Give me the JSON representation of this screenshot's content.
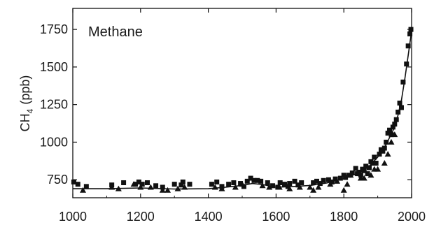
{
  "chart_data": {
    "type": "scatter",
    "title": "Methane",
    "ylabel": {
      "text": "CH",
      "subscript": "4",
      "unit": "(ppb)"
    },
    "xlabel": "",
    "xlim": [
      1000,
      2000
    ],
    "ylim": [
      630,
      1890
    ],
    "x_ticks": [
      1000,
      1200,
      1400,
      1600,
      1800,
      2000
    ],
    "x_tick_labels": [
      "1000",
      "1200",
      "1400",
      "1600",
      "1800",
      "2000"
    ],
    "y_ticks": [
      750,
      1000,
      1250,
      1500,
      1750
    ],
    "y_tick_labels": [
      "750",
      "1000",
      "1250",
      "1500",
      "1750"
    ],
    "grid": false,
    "marker_color": "#111111",
    "series": [
      {
        "marker": "square",
        "points": [
          [
            1003,
            735
          ],
          [
            1015,
            720
          ],
          [
            1040,
            705
          ],
          [
            1115,
            715
          ],
          [
            1150,
            730
          ],
          [
            1185,
            720
          ],
          [
            1195,
            735
          ],
          [
            1205,
            720
          ],
          [
            1220,
            730
          ],
          [
            1245,
            710
          ],
          [
            1265,
            700
          ],
          [
            1300,
            720
          ],
          [
            1320,
            715
          ],
          [
            1325,
            735
          ],
          [
            1345,
            720
          ],
          [
            1410,
            720
          ],
          [
            1425,
            735
          ],
          [
            1440,
            705
          ],
          [
            1460,
            720
          ],
          [
            1475,
            730
          ],
          [
            1495,
            725
          ],
          [
            1505,
            705
          ],
          [
            1515,
            740
          ],
          [
            1525,
            760
          ],
          [
            1535,
            745
          ],
          [
            1545,
            745
          ],
          [
            1555,
            740
          ],
          [
            1575,
            730
          ],
          [
            1590,
            710
          ],
          [
            1605,
            700
          ],
          [
            1612,
            730
          ],
          [
            1625,
            720
          ],
          [
            1635,
            705
          ],
          [
            1640,
            725
          ],
          [
            1655,
            740
          ],
          [
            1665,
            715
          ],
          [
            1675,
            730
          ],
          [
            1710,
            730
          ],
          [
            1720,
            740
          ],
          [
            1730,
            725
          ],
          [
            1740,
            745
          ],
          [
            1755,
            750
          ],
          [
            1765,
            735
          ],
          [
            1775,
            755
          ],
          [
            1790,
            760
          ],
          [
            1800,
            780
          ],
          [
            1805,
            765
          ],
          [
            1815,
            780
          ],
          [
            1825,
            795
          ],
          [
            1835,
            825
          ],
          [
            1840,
            790
          ],
          [
            1845,
            800
          ],
          [
            1850,
            780
          ],
          [
            1855,
            820
          ],
          [
            1860,
            810
          ],
          [
            1865,
            840
          ],
          [
            1870,
            790
          ],
          [
            1875,
            830
          ],
          [
            1880,
            870
          ],
          [
            1885,
            860
          ],
          [
            1890,
            900
          ],
          [
            1895,
            860
          ],
          [
            1905,
            920
          ],
          [
            1910,
            950
          ],
          [
            1915,
            940
          ],
          [
            1920,
            960
          ],
          [
            1925,
            1000
          ],
          [
            1930,
            1060
          ],
          [
            1935,
            1080
          ],
          [
            1940,
            1050
          ],
          [
            1945,
            1100
          ],
          [
            1950,
            1120
          ],
          [
            1955,
            1150
          ],
          [
            1960,
            1200
          ],
          [
            1965,
            1260
          ],
          [
            1970,
            1230
          ],
          [
            1975,
            1400
          ],
          [
            1985,
            1520
          ],
          [
            1990,
            1640
          ],
          [
            1995,
            1720
          ],
          [
            1998,
            1750
          ]
        ]
      },
      {
        "marker": "triangle",
        "points": [
          [
            1030,
            680
          ],
          [
            1115,
            700
          ],
          [
            1135,
            690
          ],
          [
            1180,
            720
          ],
          [
            1200,
            700
          ],
          [
            1230,
            700
          ],
          [
            1265,
            680
          ],
          [
            1280,
            680
          ],
          [
            1310,
            690
          ],
          [
            1330,
            700
          ],
          [
            1420,
            700
          ],
          [
            1440,
            690
          ],
          [
            1480,
            700
          ],
          [
            1500,
            720
          ],
          [
            1560,
            710
          ],
          [
            1580,
            700
          ],
          [
            1610,
            700
          ],
          [
            1640,
            690
          ],
          [
            1670,
            700
          ],
          [
            1700,
            700
          ],
          [
            1710,
            680
          ],
          [
            1725,
            700
          ],
          [
            1760,
            720
          ],
          [
            1780,
            740
          ],
          [
            1800,
            680
          ],
          [
            1810,
            720
          ],
          [
            1820,
            780
          ],
          [
            1850,
            760
          ],
          [
            1860,
            760
          ],
          [
            1880,
            780
          ],
          [
            1890,
            820
          ],
          [
            1900,
            820
          ],
          [
            1920,
            860
          ],
          [
            1930,
            920
          ],
          [
            1940,
            1000
          ],
          [
            1950,
            1050
          ]
        ]
      }
    ],
    "fit_line": [
      [
        1000,
        690
      ],
      [
        1100,
        690
      ],
      [
        1200,
        695
      ],
      [
        1300,
        688
      ],
      [
        1400,
        690
      ],
      [
        1450,
        700
      ],
      [
        1500,
        712
      ],
      [
        1530,
        725
      ],
      [
        1560,
        718
      ],
      [
        1600,
        700
      ],
      [
        1650,
        705
      ],
      [
        1700,
        712
      ],
      [
        1750,
        728
      ],
      [
        1800,
        758
      ],
      [
        1850,
        800
      ],
      [
        1875,
        840
      ],
      [
        1900,
        900
      ],
      [
        1925,
        985
      ],
      [
        1950,
        1100
      ],
      [
        1960,
        1180
      ],
      [
        1970,
        1280
      ],
      [
        1980,
        1420
      ],
      [
        1990,
        1580
      ],
      [
        2000,
        1740
      ]
    ]
  }
}
